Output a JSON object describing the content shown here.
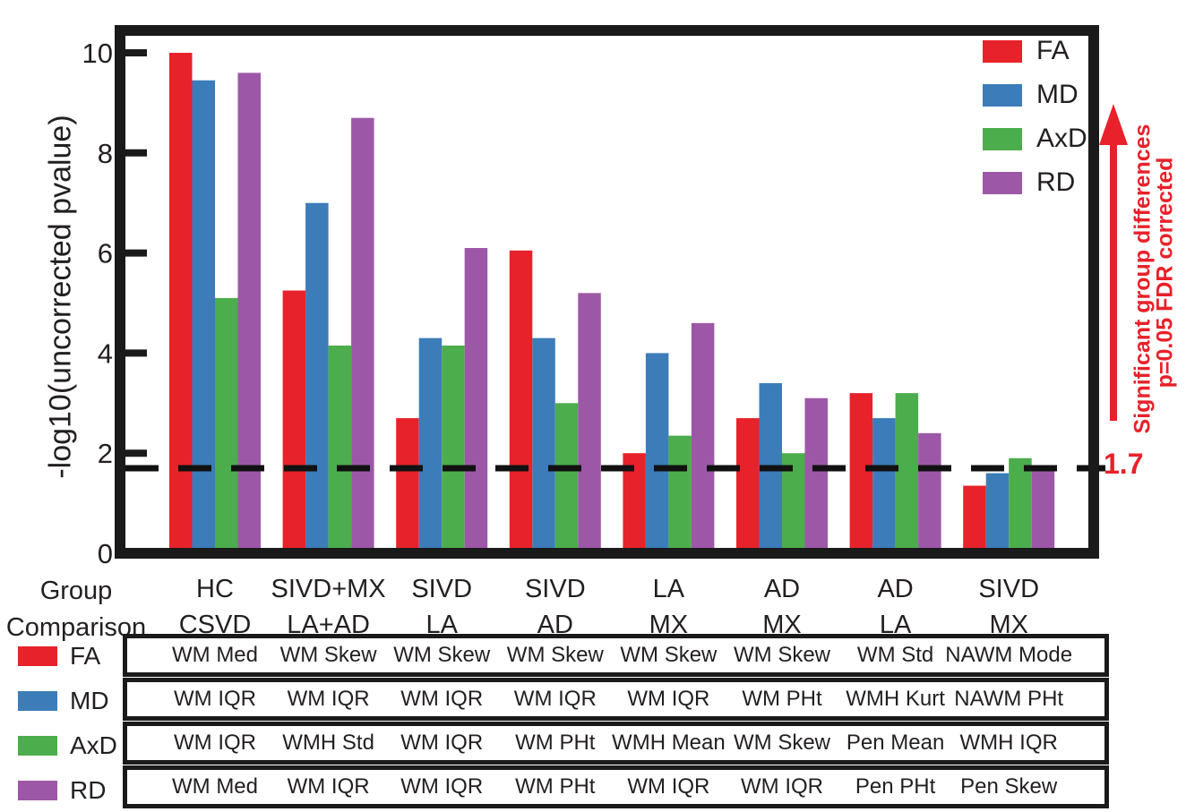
{
  "chart_data": {
    "type": "bar",
    "title": "",
    "ylabel": "-log10(uncorrected pvalue)",
    "xlabel_line1": "Group",
    "xlabel_line2": "Comparison",
    "ylim": [
      0,
      10.45
    ],
    "yticks": [
      0,
      2,
      4,
      6,
      8,
      10
    ],
    "grid": false,
    "legend_position": "top-right-inside",
    "categories": [
      {
        "line1": "HC",
        "line2": "CSVD"
      },
      {
        "line1": "SIVD+MX",
        "line2": "LA+AD"
      },
      {
        "line1": "SIVD",
        "line2": "LA"
      },
      {
        "line1": "SIVD",
        "line2": "AD"
      },
      {
        "line1": "LA",
        "line2": "MX"
      },
      {
        "line1": "AD",
        "line2": "MX"
      },
      {
        "line1": "AD",
        "line2": "LA"
      },
      {
        "line1": "SIVD",
        "line2": "MX"
      }
    ],
    "series": [
      {
        "name": "FA",
        "color": "#e8222a",
        "values": [
          10.0,
          5.25,
          2.7,
          6.05,
          2.0,
          2.7,
          3.2,
          1.35
        ]
      },
      {
        "name": "MD",
        "color": "#3c7cb9",
        "values": [
          9.45,
          7.0,
          4.3,
          4.3,
          4.0,
          3.4,
          2.7,
          1.6
        ]
      },
      {
        "name": "AxD",
        "color": "#4cad4c",
        "values": [
          5.1,
          4.15,
          4.15,
          3.0,
          2.35,
          2.0,
          3.2,
          1.9
        ]
      },
      {
        "name": "RD",
        "color": "#9c58a7",
        "values": [
          9.6,
          8.7,
          6.1,
          5.2,
          4.6,
          3.1,
          2.4,
          1.65
        ]
      }
    ],
    "threshold": {
      "value": 1.7,
      "label": "1.7",
      "style": "dashed",
      "color": "#000000"
    },
    "annotation": {
      "line1": "Significant group differences",
      "line2": "p=0.05 FDR corrected",
      "color": "#e8212a",
      "arrow_direction": "up"
    }
  },
  "table": {
    "rows": [
      {
        "name": "FA",
        "color": "#e8222a",
        "cells": [
          "WM Med",
          "WM Skew",
          "WM Skew",
          "WM Skew",
          "WM Skew",
          "WM Skew",
          "WM Std",
          "NAWM Mode"
        ]
      },
      {
        "name": "MD",
        "color": "#3c7cb9",
        "cells": [
          "WM IQR",
          "WM IQR",
          "WM IQR",
          "WM IQR",
          "WM IQR",
          "WM PHt",
          "WMH Kurt",
          "NAWM PHt"
        ]
      },
      {
        "name": "AxD",
        "color": "#4cad4c",
        "cells": [
          "WM IQR",
          "WMH Std",
          "WM IQR",
          "WM PHt",
          "WMH Mean",
          "WM Skew",
          "Pen Mean",
          "WMH IQR"
        ]
      },
      {
        "name": "RD",
        "color": "#9c58a7",
        "cells": [
          "WM Med",
          "WM IQR",
          "WM IQR",
          "WM PHt",
          "WM IQR",
          "WM IQR",
          "Pen PHt",
          "Pen Skew"
        ]
      }
    ]
  }
}
